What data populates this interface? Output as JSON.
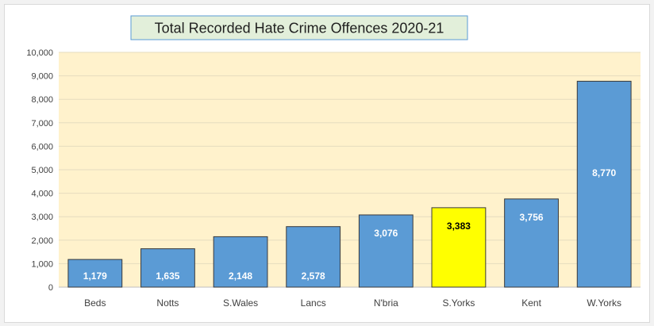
{
  "chart_data": {
    "type": "bar",
    "title": "Total Recorded Hate Crime Offences 2020-21",
    "xlabel": "",
    "ylabel": "",
    "categories": [
      "Beds",
      "Notts",
      "S.Wales",
      "Lancs",
      "N'bria",
      "S.Yorks",
      "Kent",
      "W.Yorks"
    ],
    "values": [
      1179,
      1635,
      2148,
      2578,
      3076,
      3383,
      3756,
      8770
    ],
    "data_labels": [
      "1,179",
      "1,635",
      "2,148",
      "2,578",
      "3,076",
      "3,383",
      "3,756",
      "8,770"
    ],
    "ylim": [
      0,
      10000
    ],
    "yticks": [
      0,
      1000,
      2000,
      3000,
      4000,
      5000,
      6000,
      7000,
      8000,
      9000,
      10000
    ],
    "ytick_labels": [
      "0",
      "1,000",
      "2,000",
      "3,000",
      "4,000",
      "5,000",
      "6,000",
      "7,000",
      "8,000",
      "9,000",
      "10,000"
    ],
    "grid": true,
    "legend": "none",
    "highlight_category": "S.Yorks",
    "colors": {
      "bar": "#5b9bd5",
      "bar_highlight": "#ffff00",
      "plot_background": "#fff2cc",
      "gridline": "#e6dcbf",
      "bar_border": "#3a3a3a",
      "title_background": "#e2efda",
      "title_border": "#5b9bd5"
    }
  }
}
